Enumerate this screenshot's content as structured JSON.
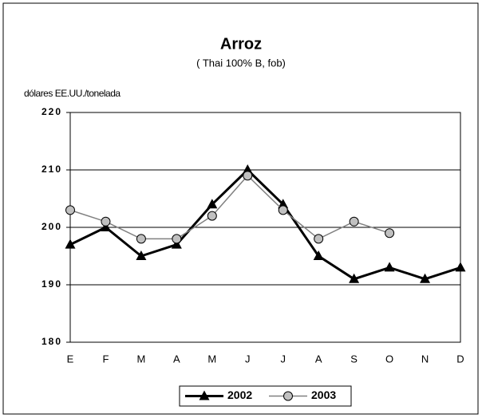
{
  "chart_data": {
    "type": "line",
    "title": "Arroz",
    "subtitle": "( Thai 100% B, fob)",
    "y_label": "dólares EE.UU./tonelada",
    "categories": [
      "E",
      "F",
      "M",
      "A",
      "M",
      "J",
      "J",
      "A",
      "S",
      "O",
      "N",
      "D"
    ],
    "series": [
      {
        "name": "2002",
        "color": "#000000",
        "marker": "triangle",
        "values": [
          197,
          200,
          195,
          197,
          204,
          210,
          204,
          195,
          191,
          193,
          191,
          193
        ]
      },
      {
        "name": "2003",
        "color": "#808080",
        "marker": "circle",
        "values": [
          203,
          201,
          198,
          198,
          202,
          209,
          203,
          198,
          201,
          199,
          null,
          null
        ]
      }
    ],
    "ylim": [
      180,
      220
    ],
    "yticks": [
      180,
      190,
      200,
      210,
      220
    ],
    "grid": true,
    "legend": "bottom"
  }
}
